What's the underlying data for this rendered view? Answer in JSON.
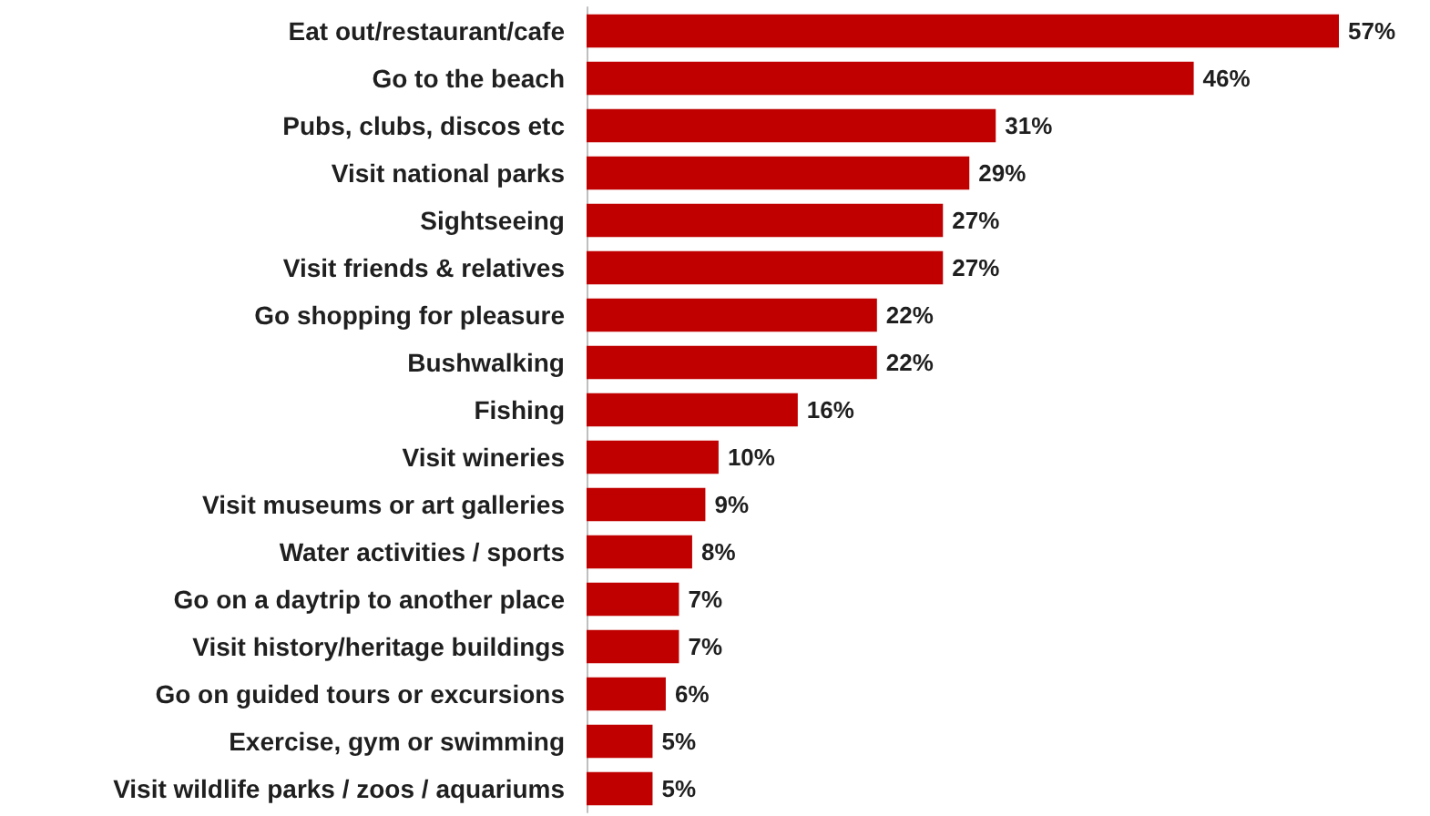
{
  "chart_data": {
    "type": "bar",
    "orientation": "horizontal",
    "categories": [
      "Eat out/restaurant/cafe",
      "Go to the beach",
      "Pubs, clubs, discos etc",
      "Visit national parks",
      "Sightseeing",
      "Visit friends & relatives",
      "Go shopping for pleasure",
      "Bushwalking",
      "Fishing",
      "Visit wineries",
      "Visit museums or art galleries",
      "Water activities / sports",
      "Go on a daytrip to another place",
      "Visit history/heritage buildings",
      "Go on guided tours or excursions",
      "Exercise, gym or swimming",
      "Visit wildlife parks / zoos / aquariums"
    ],
    "values": [
      57,
      46,
      31,
      29,
      27,
      27,
      22,
      22,
      16,
      10,
      9,
      8,
      7,
      7,
      6,
      5,
      5
    ],
    "value_labels": [
      "57%",
      "46%",
      "31%",
      "29%",
      "27%",
      "27%",
      "22%",
      "22%",
      "16%",
      "10%",
      "9%",
      "8%",
      "7%",
      "7%",
      "6%",
      "5%",
      "5%"
    ],
    "color": "#c00000"
  }
}
